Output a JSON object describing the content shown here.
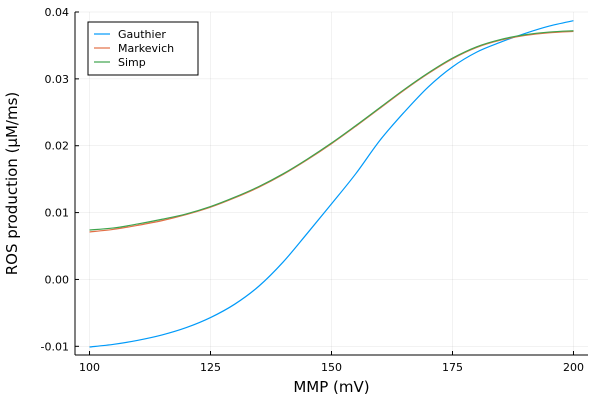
{
  "chart_data": {
    "type": "line",
    "title": "",
    "xlabel": "MMP (mV)",
    "ylabel": "ROS production (μM/ms)",
    "xlim": [
      97,
      203
    ],
    "ylim": [
      -0.0113,
      0.04
    ],
    "x_ticks": [
      100,
      125,
      150,
      175,
      200
    ],
    "x_tick_labels": [
      "100",
      "125",
      "150",
      "175",
      "200"
    ],
    "y_ticks": [
      -0.01,
      0.0,
      0.01,
      0.02,
      0.03,
      0.04
    ],
    "y_tick_labels": [
      "-0.01",
      "0.00",
      "0.01",
      "0.02",
      "0.03",
      "0.04"
    ],
    "grid": true,
    "legend_position": "top-left",
    "x": [
      100,
      105,
      110,
      115,
      120,
      125,
      130,
      135,
      140,
      145,
      150,
      155,
      160,
      165,
      170,
      175,
      180,
      185,
      190,
      195,
      200
    ],
    "series": [
      {
        "name": "Gauthier",
        "color": "#009af9",
        "values": [
          -0.0101,
          -0.0097,
          -0.0091,
          -0.0083,
          -0.0072,
          -0.0057,
          -0.0037,
          -0.001,
          0.0026,
          0.0069,
          0.0113,
          0.0158,
          0.0208,
          0.025,
          0.0288,
          0.0318,
          0.034,
          0.0355,
          0.0368,
          0.0379,
          0.0387
        ]
      },
      {
        "name": "Markevich",
        "color": "#e26f46",
        "values": [
          0.0071,
          0.0075,
          0.0081,
          0.0088,
          0.0097,
          0.0108,
          0.0122,
          0.0138,
          0.0157,
          0.0179,
          0.0203,
          0.0229,
          0.0256,
          0.0283,
          0.0308,
          0.033,
          0.0347,
          0.0358,
          0.0365,
          0.0369,
          0.0371
        ]
      },
      {
        "name": "Simp",
        "color": "#3da44d",
        "values": [
          0.0074,
          0.0077,
          0.0083,
          0.009,
          0.0098,
          0.0109,
          0.0123,
          0.0139,
          0.0158,
          0.018,
          0.0204,
          0.023,
          0.0257,
          0.0284,
          0.0309,
          0.0331,
          0.0348,
          0.0359,
          0.0366,
          0.037,
          0.0372
        ]
      }
    ]
  }
}
